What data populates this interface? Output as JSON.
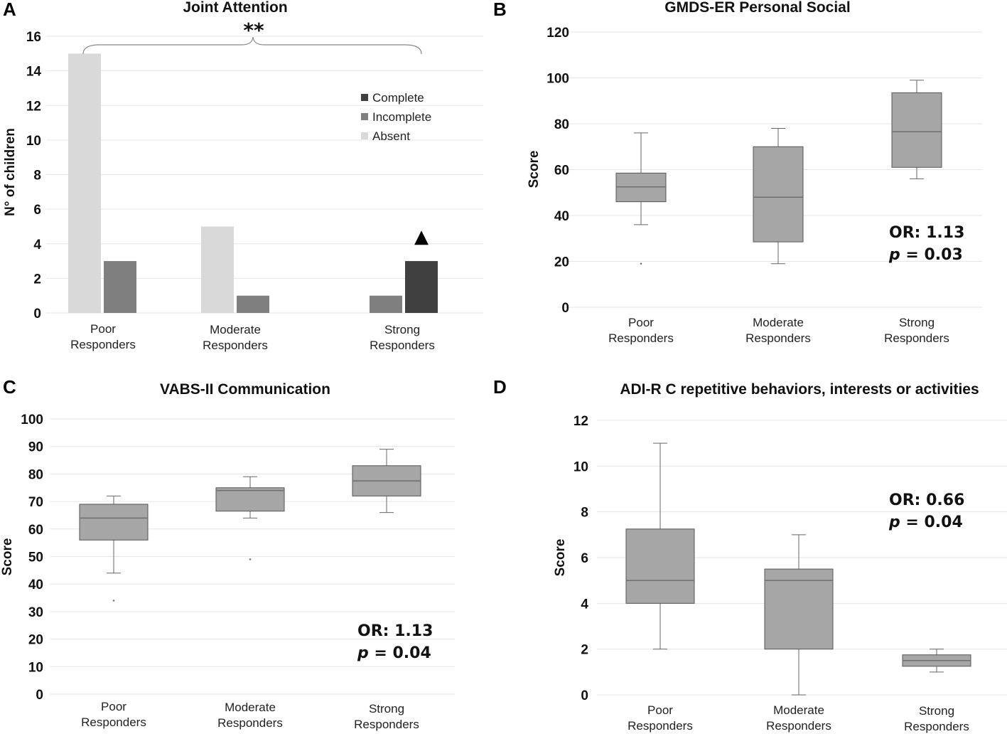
{
  "chart_data": [
    {
      "panel": "A",
      "type": "bar",
      "title": "Joint Attention",
      "ylabel": "N° of children",
      "ylim": [
        0,
        16
      ],
      "yticks": [
        0,
        2,
        4,
        6,
        8,
        10,
        12,
        14,
        16
      ],
      "categories": [
        [
          "Poor",
          "Responders"
        ],
        [
          "Moderate",
          "Responders"
        ],
        [
          "Strong",
          "Responders"
        ]
      ],
      "series": [
        {
          "name": "Absent",
          "color": "#d9d9d9",
          "values": [
            15,
            5,
            0
          ]
        },
        {
          "name": "Incomplete",
          "color": "#7f7f7f",
          "values": [
            3,
            1,
            1
          ]
        },
        {
          "name": "Complete",
          "color": "#404040",
          "values": [
            0,
            0,
            3
          ]
        }
      ],
      "legend": [
        "Complete",
        "Incomplete",
        "Absent"
      ],
      "legend_position": "top-right",
      "annotation": "**",
      "marker": "▲"
    },
    {
      "panel": "B",
      "type": "box",
      "title": "GMDS-ER Personal Social",
      "ylabel": "Score",
      "ylim": [
        0,
        120
      ],
      "yticks": [
        0,
        20,
        40,
        60,
        80,
        100,
        120
      ],
      "categories": [
        [
          "Poor",
          "Responders"
        ],
        [
          "Moderate",
          "Responders"
        ],
        [
          "Strong",
          "Responders"
        ]
      ],
      "boxes": [
        {
          "min": 36,
          "q1": 46,
          "median": 52.5,
          "q3": 58.5,
          "max": 76,
          "outliers": [
            19
          ]
        },
        {
          "min": 19,
          "q1": 28.5,
          "median": 48,
          "q3": 70,
          "max": 78,
          "outliers": []
        },
        {
          "min": 56,
          "q1": 61,
          "median": 76.5,
          "q3": 93.5,
          "max": 99,
          "outliers": []
        }
      ],
      "stat_or": "OR: 1.13",
      "stat_p_label": "p",
      "stat_p_value": " = 0.03"
    },
    {
      "panel": "C",
      "type": "box",
      "title": "VABS-II Communication",
      "ylabel": "Score",
      "ylim": [
        0,
        100
      ],
      "yticks": [
        0,
        10,
        20,
        30,
        40,
        50,
        60,
        70,
        80,
        90,
        100
      ],
      "categories": [
        [
          "Poor",
          "Responders"
        ],
        [
          "Moderate",
          "Responders"
        ],
        [
          "Strong",
          "Responders"
        ]
      ],
      "boxes": [
        {
          "min": 44,
          "q1": 56,
          "median": 64,
          "q3": 69,
          "max": 72,
          "outliers": [
            34
          ]
        },
        {
          "min": 64,
          "q1": 66.5,
          "median": 74,
          "q3": 75,
          "max": 79,
          "outliers": [
            49
          ]
        },
        {
          "min": 66,
          "q1": 72,
          "median": 77.5,
          "q3": 83,
          "max": 89,
          "outliers": []
        }
      ],
      "stat_or": "OR: 1.13",
      "stat_p_label": "p",
      "stat_p_value": " = 0.04"
    },
    {
      "panel": "D",
      "type": "box",
      "title": "ADI-R C repetitive behaviors, interests or activities",
      "ylabel": "Score",
      "ylim": [
        0,
        12
      ],
      "yticks": [
        0,
        2,
        4,
        6,
        8,
        10,
        12
      ],
      "categories": [
        [
          "Poor",
          "Responders"
        ],
        [
          "Moderate",
          "Responders"
        ],
        [
          "Strong",
          "Responders"
        ]
      ],
      "boxes": [
        {
          "min": 2,
          "q1": 4,
          "median": 5,
          "q3": 7.25,
          "max": 11,
          "outliers": []
        },
        {
          "min": 0,
          "q1": 2,
          "median": 5,
          "q3": 5.5,
          "max": 7,
          "outliers": []
        },
        {
          "min": 1,
          "q1": 1.25,
          "median": 1.5,
          "q3": 1.75,
          "max": 2,
          "outliers": []
        }
      ],
      "stat_or": "OR: 0.66",
      "stat_p_label": "p",
      "stat_p_value": " = 0.04"
    }
  ]
}
